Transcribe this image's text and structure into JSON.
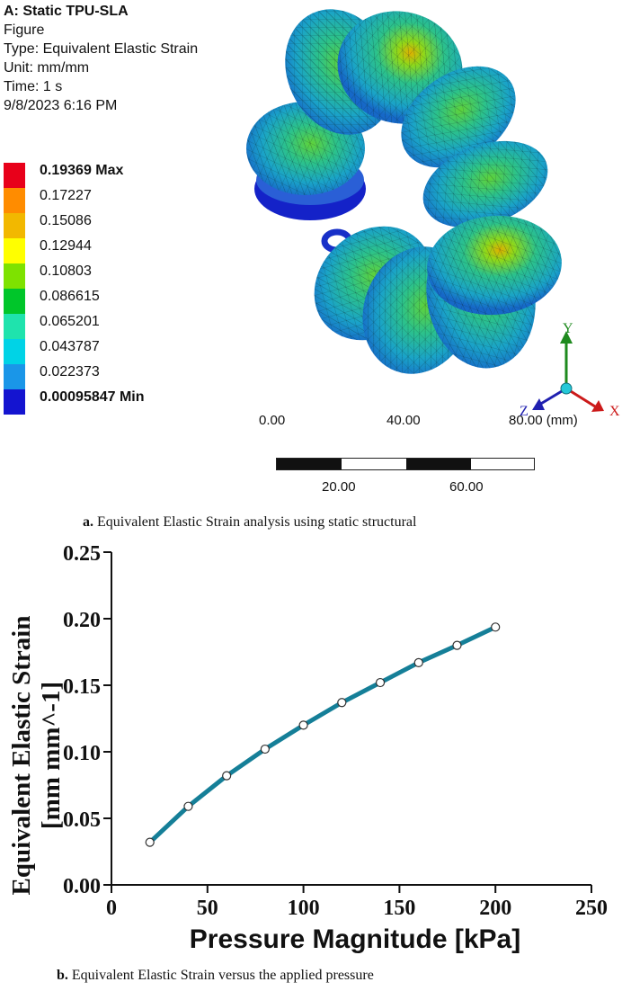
{
  "simulation": {
    "title": "A: Static TPU-SLA",
    "lines": [
      "Figure",
      "Type: Equivalent Elastic Strain",
      "Unit: mm/mm",
      "Time: 1 s",
      "9/8/2023 6:16 PM"
    ]
  },
  "legend": {
    "entries": [
      {
        "label": "0.19369 Max",
        "color": "#e8001a",
        "bold": true
      },
      {
        "label": "0.17227",
        "color": "#ff8c00"
      },
      {
        "label": "0.15086",
        "color": "#f2b800"
      },
      {
        "label": "0.12944",
        "color": "#ffff00"
      },
      {
        "label": "0.10803",
        "color": "#7ee200"
      },
      {
        "label": "0.086615",
        "color": "#00c62a"
      },
      {
        "label": "0.065201",
        "color": "#1fe3ad"
      },
      {
        "label": "0.043787",
        "color": "#00d3e6"
      },
      {
        "label": "0.022373",
        "color": "#1a96e8"
      },
      {
        "label": "0.00095847 Min",
        "color": "#1414d0",
        "bold": true
      }
    ]
  },
  "scale_bar": {
    "top_labels": [
      "0.00",
      "40.00",
      "80.00 (mm)"
    ],
    "bottom_labels": [
      "20.00",
      "60.00"
    ]
  },
  "triad": {
    "x": "X",
    "y": "Y",
    "z": "Z"
  },
  "captions": {
    "a_tag": "a.",
    "a_text": "Equivalent Elastic Strain analysis using static structural",
    "b_tag": "b.",
    "b_text": "Equivalent Elastic Strain versus the applied pressure"
  },
  "colors": {
    "line": "#157f98",
    "marker_fill": "#ffffff",
    "marker_stroke": "#333333"
  },
  "chart_data": {
    "type": "line",
    "xlabel": "Pressure Magnitude [kPa]",
    "ylabel_line1": "Equivalent Elastic Strain",
    "ylabel_line2": "[mm mm^-1]",
    "xlim": [
      0,
      250
    ],
    "ylim": [
      0,
      0.25
    ],
    "xticks": [
      "0",
      "50",
      "100",
      "150",
      "200",
      "250"
    ],
    "yticks": [
      "0.00",
      "0.05",
      "0.10",
      "0.15",
      "0.20",
      "0.25"
    ],
    "grid": false,
    "series": [
      {
        "x": [
          20,
          40,
          60,
          80,
          100,
          120,
          140,
          160,
          180,
          200
        ],
        "values": [
          0.032,
          0.059,
          0.082,
          0.102,
          0.12,
          0.137,
          0.152,
          0.167,
          0.18,
          0.1937
        ]
      }
    ]
  }
}
